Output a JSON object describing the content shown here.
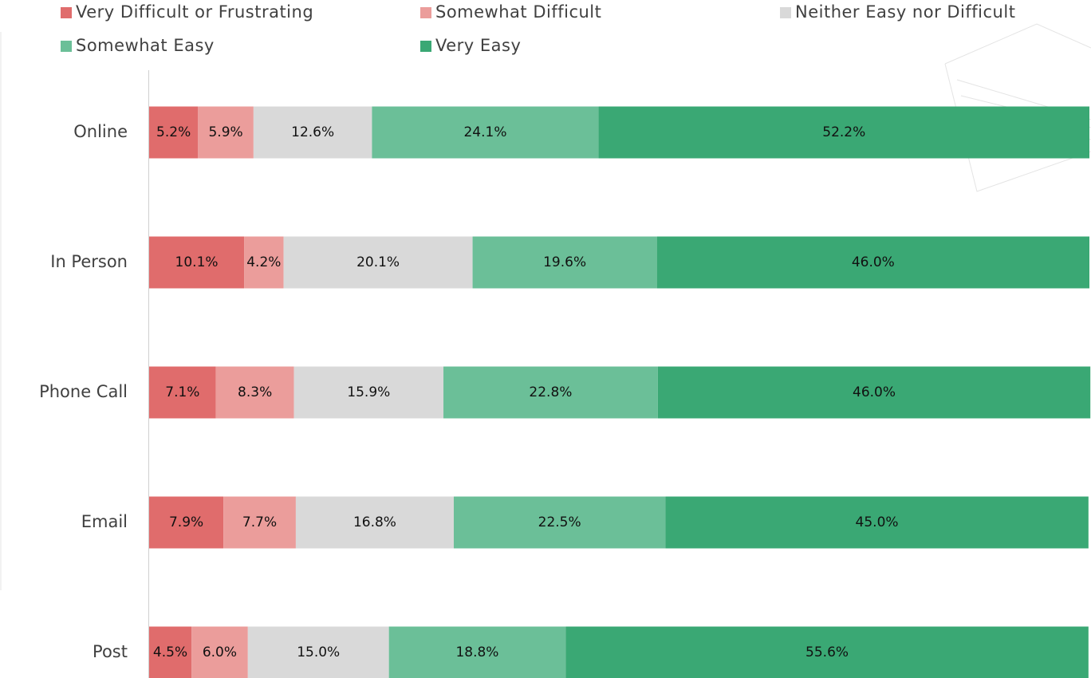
{
  "chart_data": {
    "type": "stacked-bar-horizontal",
    "categories": [
      "Online",
      "In Person",
      "Phone Call",
      "Email",
      "Post"
    ],
    "xlim": [
      0,
      100
    ],
    "series": [
      {
        "name": "Very Difficult or Frustrating",
        "color": "#e06c6c",
        "values": [
          5.2,
          10.1,
          7.1,
          7.9,
          4.5
        ],
        "value_labels": [
          "5.2%",
          "10.1%",
          "7.1%",
          "7.9%",
          "4.5%"
        ]
      },
      {
        "name": "Somewhat Difficult",
        "color": "#eb9d9b",
        "values": [
          5.9,
          4.2,
          8.3,
          7.7,
          6.0
        ],
        "value_labels": [
          "5.9%",
          "4.2%",
          "8.3%",
          "7.7%",
          "6.0%"
        ]
      },
      {
        "name": "Neither Easy nor Difficult",
        "color": "#d9d9d9",
        "values": [
          12.6,
          20.1,
          15.9,
          16.8,
          15.0
        ],
        "value_labels": [
          "12.6%",
          "20.1%",
          "15.9%",
          "16.8%",
          "15.0%"
        ]
      },
      {
        "name": "Somewhat Easy",
        "color": "#6bbf98",
        "values": [
          24.1,
          19.6,
          22.8,
          22.5,
          18.8
        ],
        "value_labels": [
          "24.1%",
          "19.6%",
          "22.8%",
          "22.5%",
          "18.8%"
        ]
      },
      {
        "name": "Very Easy",
        "color": "#3aa874",
        "values": [
          52.2,
          46.0,
          46.0,
          45.0,
          55.6
        ],
        "value_labels": [
          "52.2%",
          "46.0%",
          "46.0%",
          "45.0%",
          "55.6%"
        ]
      }
    ]
  }
}
